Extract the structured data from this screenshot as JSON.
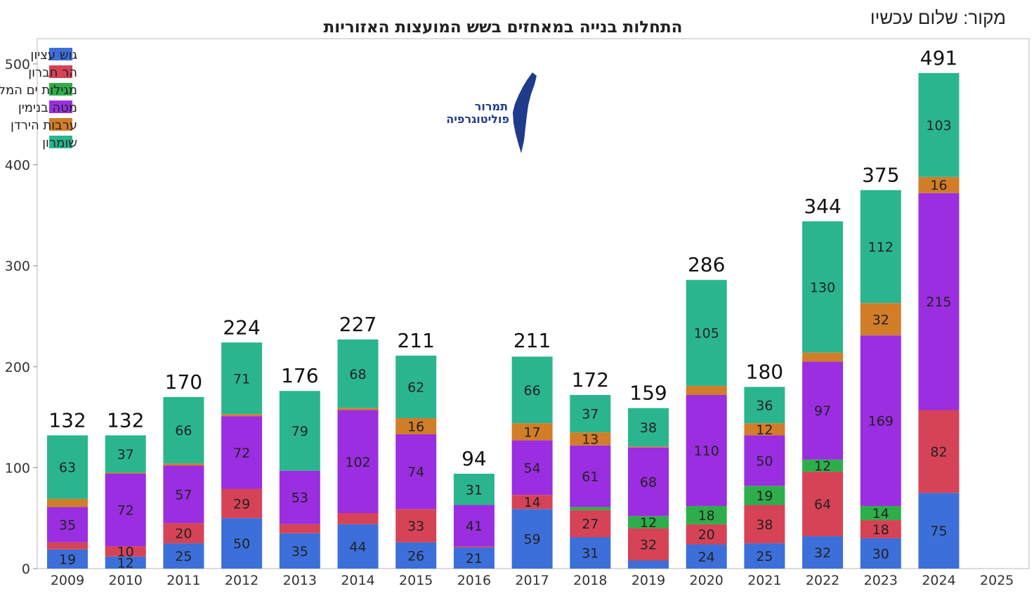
{
  "source_note": "מקור: שלום עכשיו",
  "logo": {
    "line1": "תמרור",
    "line2": "פוליטוגרפיה"
  },
  "colors": {
    "gush_etzion": "#3c6fd9",
    "har_hevron": "#d64356",
    "megilot": "#2eae4b",
    "mate_binyamin": "#9a2ee0",
    "arvot_hayarden": "#d27d28",
    "shomron": "#2bb58f",
    "logo_blue": "#1f3b8c"
  },
  "chart_data": {
    "type": "bar",
    "stacked": true,
    "title": "התחלות בנייה במאחזים בשש המועצות האזוריות",
    "xlabel": "",
    "ylabel": "",
    "ylim": [
      0,
      525
    ],
    "yticks": [
      0,
      100,
      200,
      300,
      400,
      500
    ],
    "legend_position": "top-left",
    "categories": [
      "2009",
      "2010",
      "2011",
      "2012",
      "2013",
      "2014",
      "2015",
      "2016",
      "2017",
      "2018",
      "2019",
      "2020",
      "2021",
      "2022",
      "2023",
      "2024",
      "2025"
    ],
    "totals": [
      132,
      132,
      170,
      224,
      176,
      227,
      211,
      94,
      211,
      172,
      159,
      286,
      180,
      344,
      375,
      491,
      null
    ],
    "series": [
      {
        "key": "gush_etzion",
        "name": "גוש עציון",
        "values": [
          19,
          12,
          25,
          50,
          35,
          44,
          26,
          21,
          59,
          31,
          8,
          24,
          25,
          32,
          30,
          75,
          0
        ],
        "labels": [
          "19",
          "12",
          "25",
          "50",
          "35",
          "44",
          "26",
          "21",
          "59",
          "31",
          "",
          "24",
          "25",
          "32",
          "30",
          "75",
          ""
        ]
      },
      {
        "key": "har_hevron",
        "name": "הר חברון",
        "values": [
          7,
          10,
          20,
          29,
          9,
          11,
          33,
          1,
          14,
          27,
          32,
          20,
          38,
          64,
          18,
          82,
          0
        ],
        "labels": [
          "",
          "10",
          "20",
          "29",
          "",
          "",
          "33",
          "",
          "14",
          "27",
          "32",
          "20",
          "38",
          "64",
          "18",
          "82",
          ""
        ]
      },
      {
        "key": "megilot",
        "name": "מגילות ים המלח",
        "values": [
          0,
          0,
          0,
          0,
          0,
          0,
          0,
          0,
          0,
          3,
          12,
          18,
          19,
          12,
          14,
          0,
          0
        ],
        "labels": [
          "",
          "",
          "",
          "",
          "",
          "",
          "",
          "",
          "",
          "",
          "12",
          "18",
          "19",
          "12",
          "14",
          "",
          ""
        ]
      },
      {
        "key": "mate_binyamin",
        "name": "מטה בנימין",
        "values": [
          35,
          72,
          57,
          72,
          53,
          102,
          74,
          41,
          54,
          61,
          68,
          110,
          50,
          97,
          169,
          215,
          0
        ],
        "labels": [
          "35",
          "72",
          "57",
          "72",
          "53",
          "102",
          "74",
          "41",
          "54",
          "61",
          "68",
          "110",
          "50",
          "97",
          "169",
          "215",
          ""
        ]
      },
      {
        "key": "arvot_hayarden",
        "name": "ערבות הירדן",
        "values": [
          8,
          1,
          2,
          2,
          0,
          2,
          16,
          0,
          17,
          13,
          1,
          9,
          12,
          9,
          32,
          16,
          0
        ],
        "labels": [
          "",
          "",
          "",
          "",
          "",
          "",
          "16",
          "",
          "17",
          "13",
          "",
          "",
          "12",
          "",
          "32",
          "16",
          ""
        ]
      },
      {
        "key": "shomron",
        "name": "שומרון",
        "values": [
          63,
          37,
          66,
          71,
          79,
          68,
          62,
          31,
          66,
          37,
          38,
          105,
          36,
          130,
          112,
          103,
          0
        ],
        "labels": [
          "63",
          "37",
          "66",
          "71",
          "79",
          "68",
          "62",
          "31",
          "66",
          "37",
          "38",
          "105",
          "36",
          "130",
          "112",
          "103",
          ""
        ]
      }
    ]
  }
}
